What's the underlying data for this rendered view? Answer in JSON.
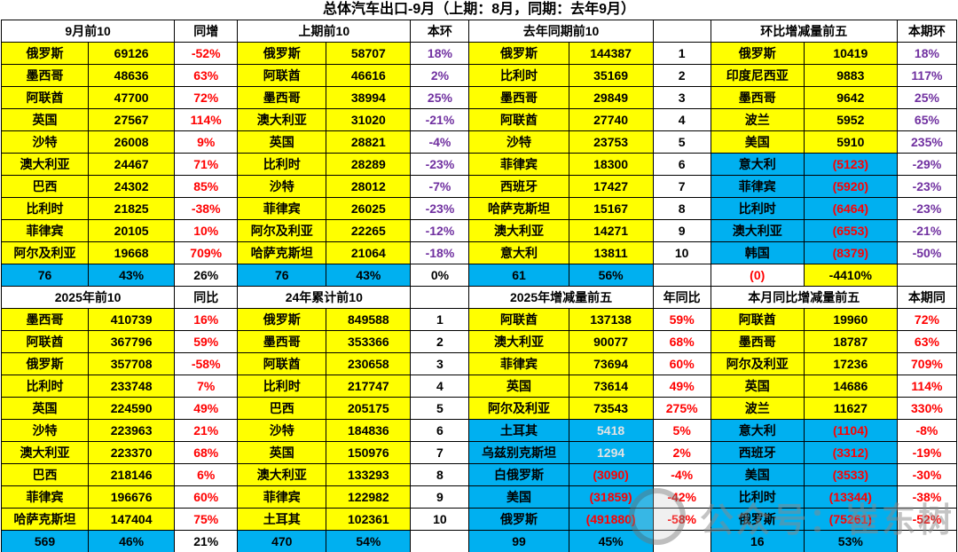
{
  "colors": {
    "yellow": "#FFFF00",
    "cyan": "#00B0F0",
    "red": "#FF0000",
    "purple": "#7030A0",
    "gray_value": "#E3E3E3"
  },
  "watermark": {
    "text": "公众号：崔东树"
  },
  "chart_data": {
    "type": "table",
    "title": "总体汽车出口-9月（上期：8月，同期：去年9月）",
    "style_legend": {
      "y": "yellow-bg black",
      "c": "cyan-bg black",
      "r": "white-bg red",
      "p": "white-bg purple",
      "k": "white-bg black",
      "b": "white-bg black bold",
      "cr": "cyan-bg red",
      "cg": "cyan-bg gray",
      "e": "empty"
    },
    "sections": [
      {
        "name": "monthly",
        "header": [
          [
            "9月前10",
            2
          ],
          [
            "同增",
            1
          ],
          [
            "上期前10",
            2
          ],
          [
            "本环",
            1
          ],
          [
            "去年同期前10",
            2
          ],
          [
            "",
            1
          ],
          [
            "环比增减量前五",
            2
          ],
          [
            "本期环",
            1
          ]
        ],
        "rows": [
          [
            "y:俄罗斯",
            "y:69126",
            "r:-52%",
            "y:俄罗斯",
            "y:58707",
            "p:18%",
            "y:俄罗斯",
            "y:144387",
            "k:1",
            "y:俄罗斯",
            "y:10419",
            "p:18%"
          ],
          [
            "y:墨西哥",
            "y:48636",
            "r:63%",
            "y:阿联酋",
            "y:46616",
            "p:2%",
            "y:比利时",
            "y:35169",
            "k:2",
            "y:印度尼西亚",
            "y:9883",
            "p:117%"
          ],
          [
            "y:阿联酋",
            "y:47700",
            "r:72%",
            "y:墨西哥",
            "y:38994",
            "p:25%",
            "y:墨西哥",
            "y:29849",
            "k:3",
            "y:墨西哥",
            "y:9642",
            "p:25%"
          ],
          [
            "y:英国",
            "y:27567",
            "r:114%",
            "y:澳大利亚",
            "y:31020",
            "p:-21%",
            "y:阿联酋",
            "y:27740",
            "k:4",
            "y:波兰",
            "y:5952",
            "p:65%"
          ],
          [
            "y:沙特",
            "y:26008",
            "r:9%",
            "y:英国",
            "y:28821",
            "p:-4%",
            "y:沙特",
            "y:23753",
            "k:5",
            "y:美国",
            "y:5910",
            "p:235%"
          ],
          [
            "y:澳大利亚",
            "y:24467",
            "r:71%",
            "y:比利时",
            "y:28289",
            "p:-23%",
            "y:菲律宾",
            "y:18300",
            "k:6",
            "c:意大利",
            "cr:(5123)",
            "p:-29%"
          ],
          [
            "y:巴西",
            "y:24302",
            "r:85%",
            "y:沙特",
            "y:28012",
            "p:-7%",
            "y:西班牙",
            "y:17427",
            "k:7",
            "c:菲律宾",
            "cr:(5920)",
            "p:-23%"
          ],
          [
            "y:比利时",
            "y:21825",
            "r:-38%",
            "y:菲律宾",
            "y:26025",
            "p:-23%",
            "y:哈萨克斯坦",
            "y:15167",
            "k:8",
            "c:比利时",
            "cr:(6464)",
            "p:-23%"
          ],
          [
            "y:菲律宾",
            "y:20105",
            "r:10%",
            "y:阿尔及利亚",
            "y:22265",
            "p:-12%",
            "y:澳大利亚",
            "y:14271",
            "k:9",
            "c:澳大利亚",
            "cr:(6553)",
            "p:-21%"
          ],
          [
            "y:阿尔及利亚",
            "y:19668",
            "r:709%",
            "y:哈萨克斯坦",
            "y:21064",
            "p:-18%",
            "y:意大利",
            "y:13811",
            "k:10",
            "c:韩国",
            "cr:(8379)",
            "p:-50%"
          ]
        ],
        "summary": [
          "c:76",
          "c:43%",
          "b:26%",
          "c:76",
          "c:43%",
          "b:0%",
          "c:61",
          "c:56%",
          "e:",
          "r:(0)",
          "y:-4410%",
          "e:"
        ]
      },
      {
        "name": "cumulative",
        "header": [
          [
            "2025年前10",
            2
          ],
          [
            "同比",
            1
          ],
          [
            "24年累计前10",
            2
          ],
          [
            "",
            1
          ],
          [
            "2025年增减量前五",
            2
          ],
          [
            "年同比",
            1
          ],
          [
            "本月同比增减量前五",
            2
          ],
          [
            "本期同",
            1
          ]
        ],
        "rows": [
          [
            "y:墨西哥",
            "y:410739",
            "r:16%",
            "y:俄罗斯",
            "y:849588",
            "k:1",
            "y:阿联酋",
            "y:137138",
            "r:59%",
            "y:阿联酋",
            "y:19960",
            "r:72%"
          ],
          [
            "y:阿联酋",
            "y:367796",
            "r:59%",
            "y:墨西哥",
            "y:353366",
            "k:2",
            "y:澳大利亚",
            "y:90077",
            "r:68%",
            "y:墨西哥",
            "y:18787",
            "r:63%"
          ],
          [
            "y:俄罗斯",
            "y:357708",
            "r:-58%",
            "y:阿联酋",
            "y:230658",
            "k:3",
            "y:菲律宾",
            "y:73694",
            "r:60%",
            "y:阿尔及利亚",
            "y:17236",
            "r:709%"
          ],
          [
            "y:比利时",
            "y:233748",
            "r:7%",
            "y:比利时",
            "y:217747",
            "k:4",
            "y:英国",
            "y:73614",
            "r:49%",
            "y:英国",
            "y:14686",
            "r:114%"
          ],
          [
            "y:英国",
            "y:224590",
            "r:49%",
            "y:巴西",
            "y:205175",
            "k:5",
            "y:阿尔及利亚",
            "y:73543",
            "r:275%",
            "y:波兰",
            "y:11627",
            "r:330%"
          ],
          [
            "y:沙特",
            "y:223963",
            "r:21%",
            "y:沙特",
            "y:184836",
            "k:6",
            "c:土耳其",
            "cg:5418",
            "r:5%",
            "c:意大利",
            "cr:(1104)",
            "r:-8%"
          ],
          [
            "y:澳大利亚",
            "y:223370",
            "r:68%",
            "y:英国",
            "y:150976",
            "k:7",
            "c:乌兹别克斯坦",
            "cg:1294",
            "r:2%",
            "c:西班牙",
            "cr:(3312)",
            "r:-19%"
          ],
          [
            "y:巴西",
            "y:218146",
            "r:6%",
            "y:澳大利亚",
            "y:133293",
            "k:8",
            "c:白俄罗斯",
            "cr:(3090)",
            "r:-4%",
            "c:美国",
            "cr:(3533)",
            "r:-30%"
          ],
          [
            "y:菲律宾",
            "y:196676",
            "r:60%",
            "y:菲律宾",
            "y:122982",
            "k:9",
            "c:美国",
            "cr:(31859)",
            "r:-42%",
            "c:比利时",
            "cr:(13344)",
            "r:-38%"
          ],
          [
            "y:哈萨克斯坦",
            "y:147404",
            "r:75%",
            "y:土耳其",
            "y:102361",
            "k:10",
            "c:俄罗斯",
            "cr:(491880)",
            "r:-58%",
            "c:俄罗斯",
            "cr:(75261)",
            "r:-52%"
          ]
        ],
        "summary": [
          "c:569",
          "c:46%",
          "b:21%",
          "c:470",
          "c:54%",
          "e:",
          "c:99",
          "c:45%",
          "e:",
          "c:16",
          "c:53%",
          "e:"
        ]
      }
    ]
  }
}
